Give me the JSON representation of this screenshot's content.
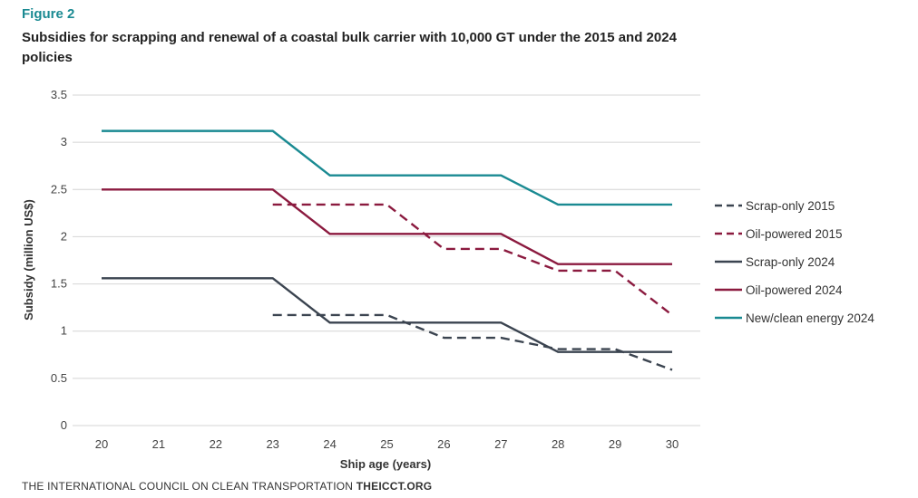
{
  "figure_label": "Figure 2",
  "footer": {
    "org": "THE INTERNATIONAL COUNCIL ON CLEAN TRANSPORTATION",
    "site": "THEICCT.ORG"
  },
  "colors": {
    "accent": "#1a8a92",
    "maroon": "#8b1a3f",
    "slate": "#3b4450",
    "teal": "#1a8a92",
    "grid": "#d4d4d4"
  },
  "chart_data": {
    "type": "line",
    "title": "Subsidies for scrapping and renewal of a coastal bulk carrier with 10,000 GT under the 2015 and 2024 policies",
    "xlabel": "Ship age (years)",
    "ylabel": "Subsidy (million US$)",
    "xlim": [
      20,
      30
    ],
    "ylim": [
      0,
      3.5
    ],
    "x_ticks": [
      "20",
      "21",
      "22",
      "23",
      "24",
      "25",
      "26",
      "27",
      "28",
      "29",
      "30"
    ],
    "y_ticks": [
      "0",
      "0.5",
      "1",
      "1.5",
      "2",
      "2.5",
      "3",
      "3.5"
    ],
    "grid": "horizontal",
    "legend_position": "right",
    "series": [
      {
        "name": "Scrap-only 2015",
        "color": "#3b4450",
        "style": "dashed",
        "points": [
          [
            23,
            1.17
          ],
          [
            25,
            1.17
          ],
          [
            26,
            0.93
          ],
          [
            27,
            0.93
          ],
          [
            28,
            0.81
          ],
          [
            29,
            0.81
          ],
          [
            30,
            0.59
          ]
        ]
      },
      {
        "name": "Oil-powered 2015",
        "color": "#8b1a3f",
        "style": "dashed",
        "points": [
          [
            23,
            2.34
          ],
          [
            25,
            2.34
          ],
          [
            26,
            1.87
          ],
          [
            27,
            1.87
          ],
          [
            28,
            1.64
          ],
          [
            29,
            1.64
          ],
          [
            30,
            1.17
          ]
        ]
      },
      {
        "name": "Scrap-only 2024",
        "color": "#3b4450",
        "style": "solid",
        "points": [
          [
            20,
            1.56
          ],
          [
            23,
            1.56
          ],
          [
            24,
            1.09
          ],
          [
            27,
            1.09
          ],
          [
            28,
            0.78
          ],
          [
            30,
            0.78
          ]
        ]
      },
      {
        "name": "Oil-powered 2024",
        "color": "#8b1a3f",
        "style": "solid",
        "points": [
          [
            20,
            2.5
          ],
          [
            23,
            2.5
          ],
          [
            24,
            2.03
          ],
          [
            27,
            2.03
          ],
          [
            28,
            1.71
          ],
          [
            30,
            1.71
          ]
        ]
      },
      {
        "name": "New/clean energy 2024",
        "color": "#1a8a92",
        "style": "solid",
        "points": [
          [
            20,
            3.12
          ],
          [
            23,
            3.12
          ],
          [
            24,
            2.65
          ],
          [
            27,
            2.65
          ],
          [
            28,
            2.34
          ],
          [
            30,
            2.34
          ]
        ]
      }
    ]
  }
}
